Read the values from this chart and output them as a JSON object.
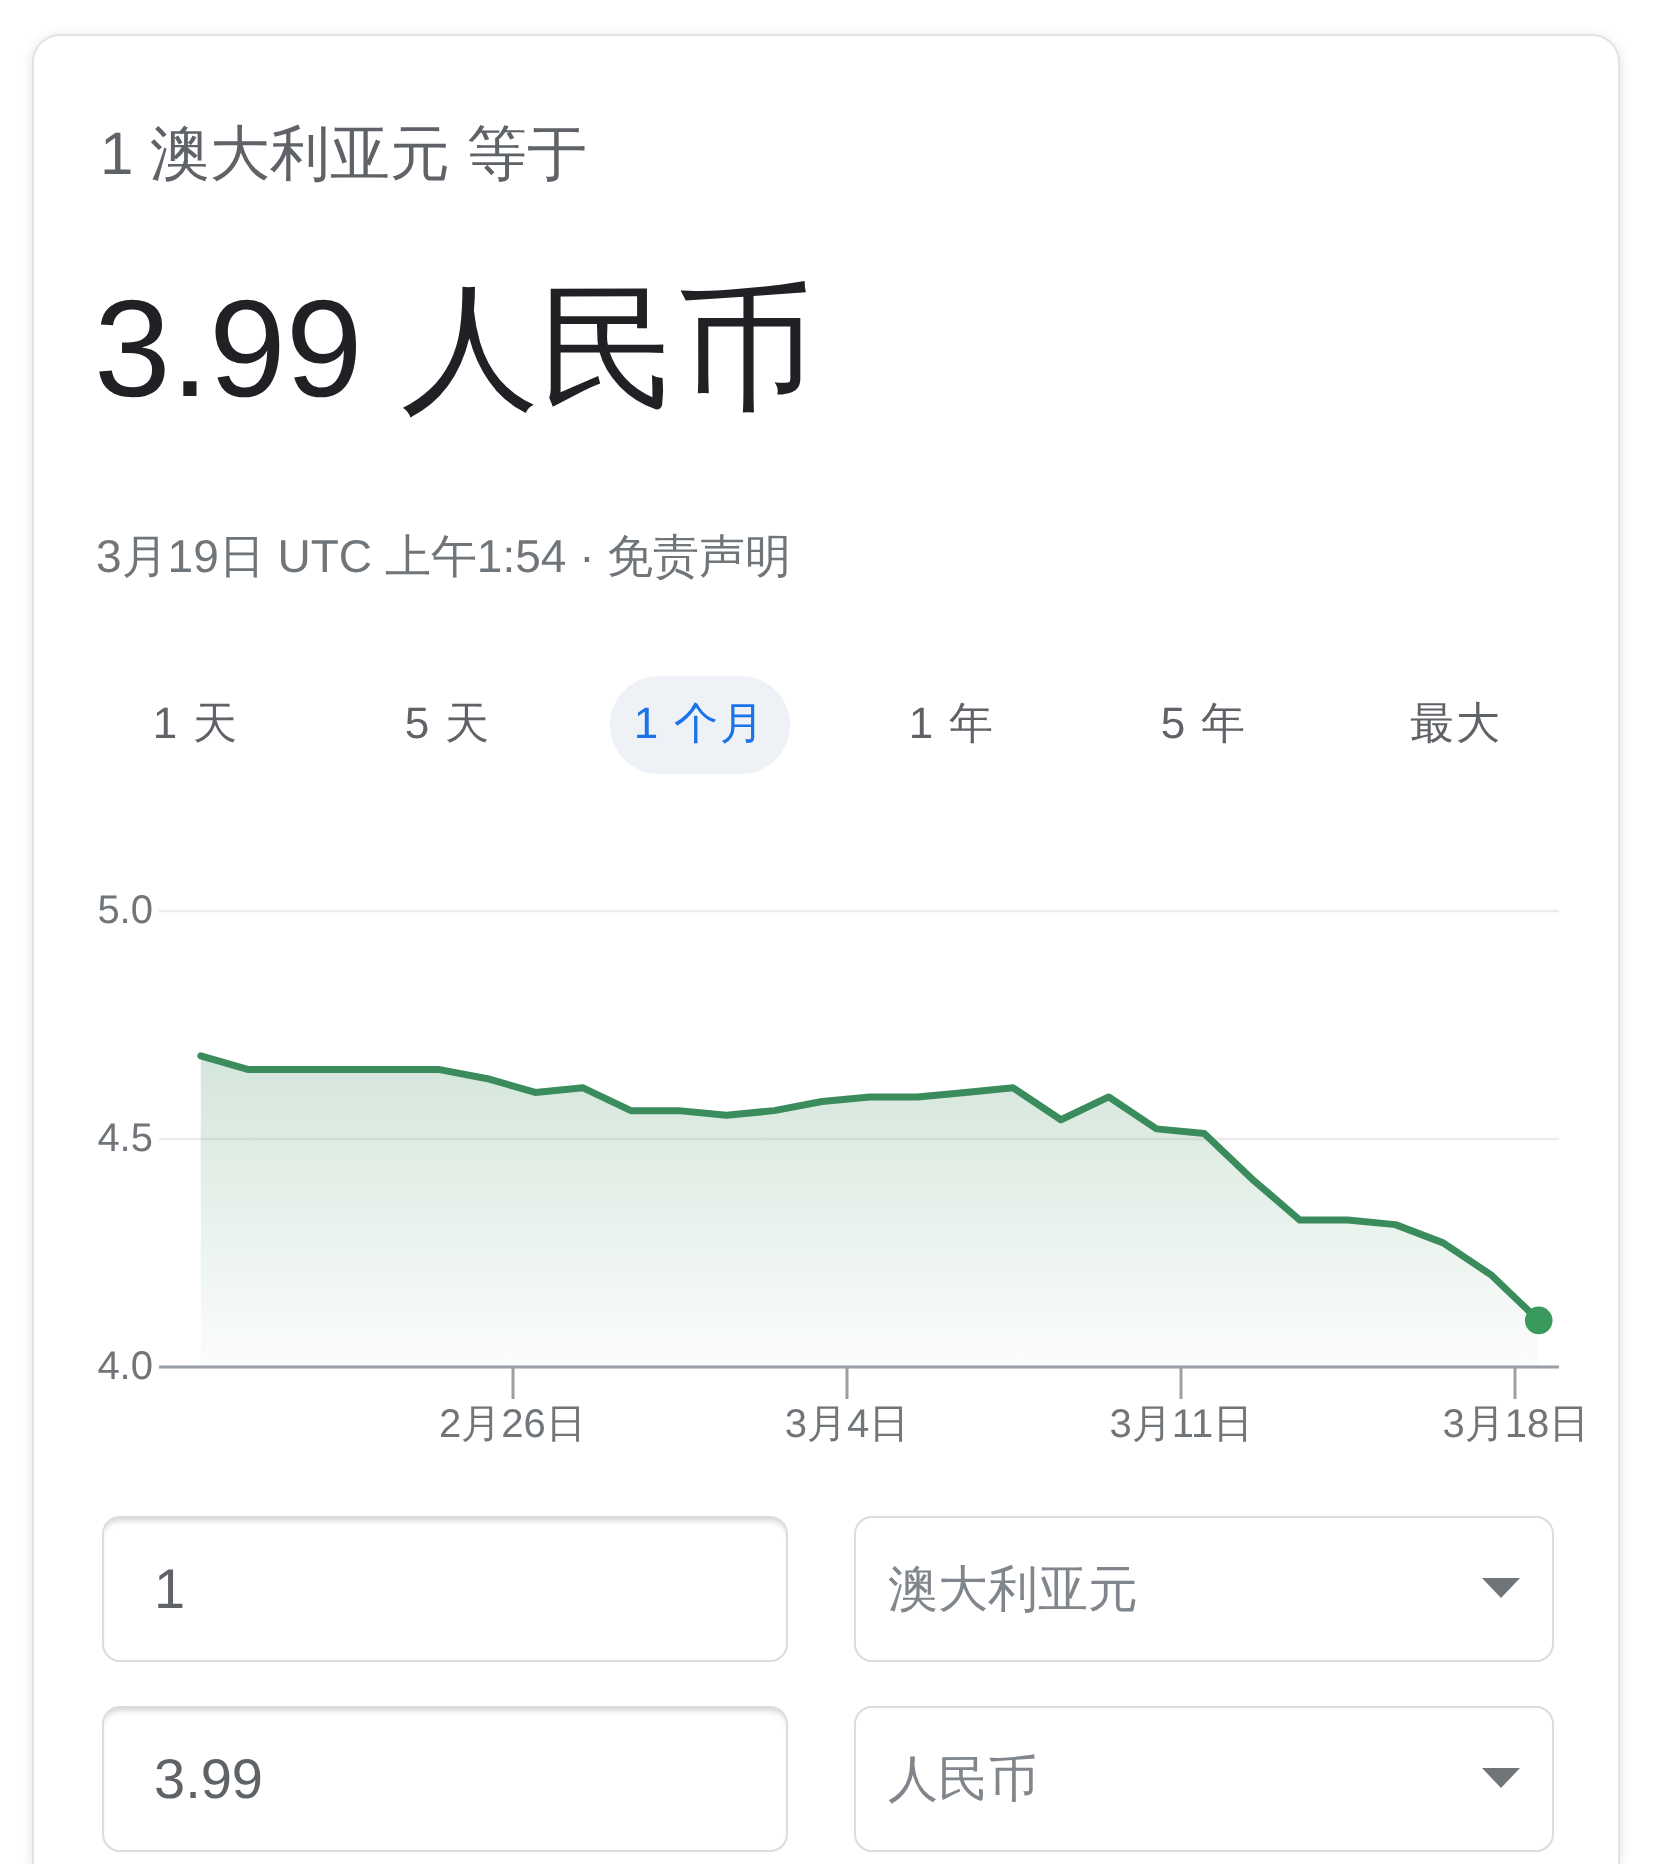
{
  "chart_data": {
    "type": "area",
    "title": "1 澳大利亚元 等于",
    "subtitle": "3.99 人民币",
    "annotations": [
      "3月19日 UTC 上午1:54 · 免责声明",
      "1 天",
      "5 天",
      "1 个月",
      "1 年",
      "5 年",
      "最大",
      "1",
      "澳大利亚元",
      "3.99",
      "人民币"
    ],
    "x": [
      "--02-19T12:00",
      "--02-20T12:00",
      "--02-21T12:00",
      "--02-22T12:00",
      "--02-23T12:00",
      "--02-24T12:00",
      "--02-25T12:00",
      "--02-26T12:00",
      "--02-27T12:00",
      "--02-28T12:00",
      "--02-29T12:00",
      "--03-01T12:00",
      "--03-02T12:00",
      "--03-03T12:00",
      "--03-04T12:00",
      "--03-05T12:00",
      "--03-06T12:00",
      "--03-07T12:00",
      "--03-08T12:00",
      "--03-09T12:00",
      "--03-10T12:00",
      "--03-11T12:00",
      "--03-12T12:00",
      "--03-13T12:00",
      "--03-14T12:00",
      "--03-15T12:00",
      "--03-16T12:00",
      "--03-17T12:00",
      "--03-18T12:00"
    ],
    "series": [
      {
        "color": "#3b8c5c",
        "values": [
          4.68,
          4.65,
          4.65,
          4.65,
          4.65,
          4.65,
          4.63,
          4.6,
          4.61,
          4.56,
          4.56,
          4.55,
          4.56,
          4.58,
          4.59,
          4.59,
          4.6,
          4.61,
          4.54,
          4.59,
          4.52,
          4.51,
          4.41,
          4.32,
          4.32,
          4.31,
          4.27,
          4.2,
          4.1
        ]
      },
      {
        "type": "scatter",
        "color": "#3a9a5e",
        "marker": "circle",
        "x": [
          "--03-18T12:00"
        ],
        "values": [
          4.1
        ]
      }
    ],
    "xlim": [
      "--02-18T14:30",
      "--03-18T21:40"
    ],
    "xticks": [
      {
        "value": "--02-26",
        "label": "2月26日"
      },
      {
        "value": "--03-04",
        "label": "3月4日"
      },
      {
        "value": "--03-11",
        "label": "3月11日"
      },
      {
        "value": "--03-18",
        "label": "3月18日"
      }
    ],
    "ylim": [
      4,
      5
    ],
    "yticks": [
      {
        "value": 4,
        "label": "4.0"
      },
      4.5,
      {
        "value": 5,
        "label": "5.0"
      }
    ],
    "grid": "y"
  }
}
